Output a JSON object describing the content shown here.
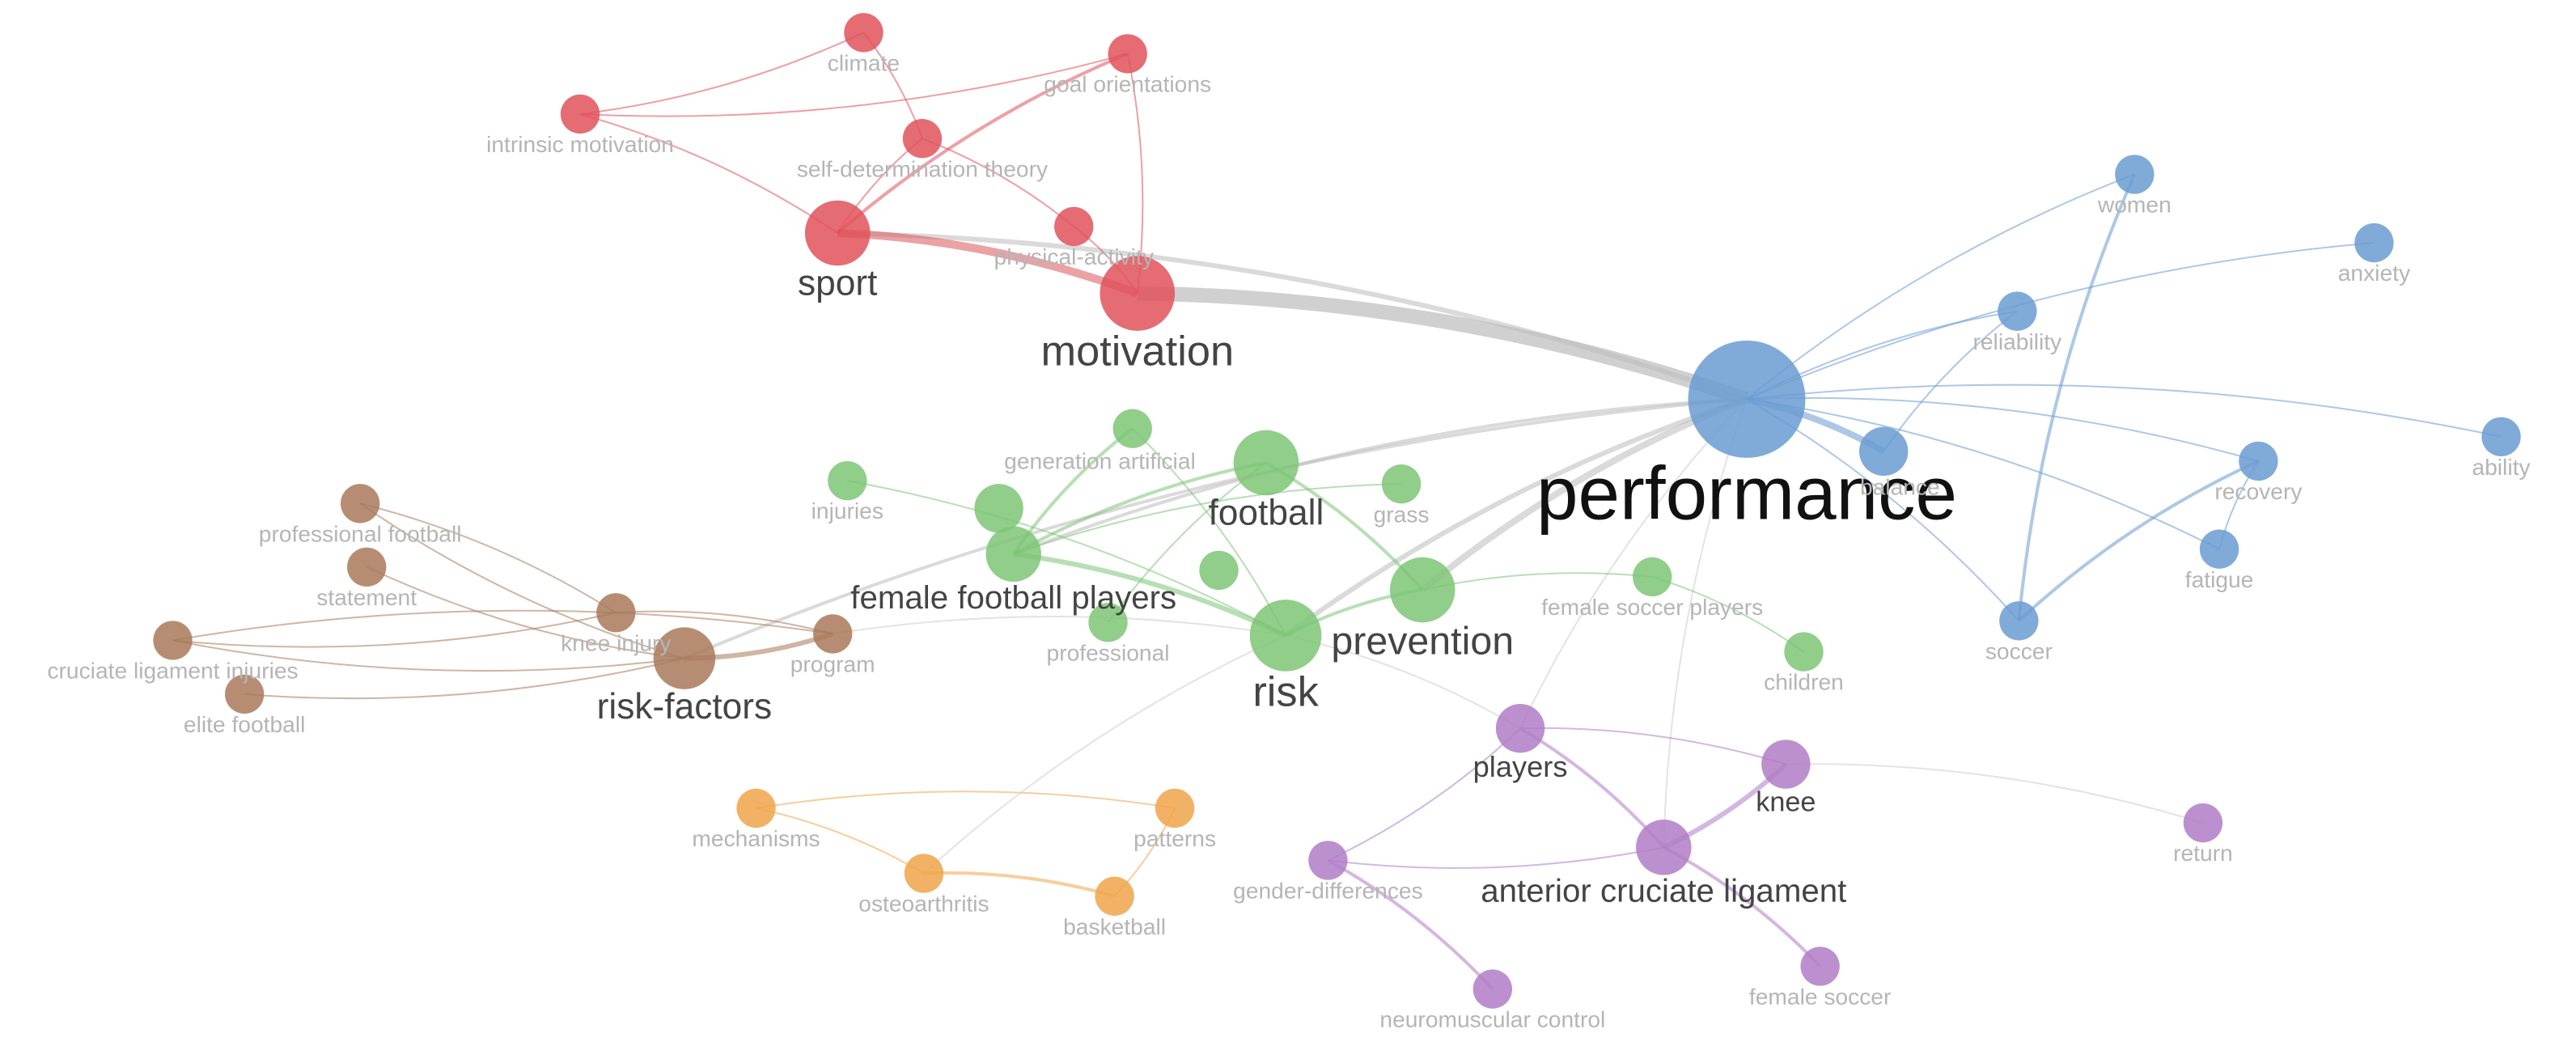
{
  "nodes": [
    {
      "label": "climate"
    },
    {
      "label": "goal orientations"
    },
    {
      "label": "intrinsic motivation"
    },
    {
      "label": "self-determination theory"
    },
    {
      "label": "physical-activity"
    },
    {
      "label": "sport"
    },
    {
      "label": "motivation"
    },
    {
      "label": "performance"
    },
    {
      "label": "women"
    },
    {
      "label": "anxiety"
    },
    {
      "label": "reliability"
    },
    {
      "label": "balance"
    },
    {
      "label": "recovery"
    },
    {
      "label": "ability"
    },
    {
      "label": "fatigue"
    },
    {
      "label": "soccer"
    },
    {
      "label": "generation artificial"
    },
    {
      "label": "football"
    },
    {
      "label": "grass"
    },
    {
      "label": "injuries"
    },
    {
      "label": "female football players"
    },
    {
      "label": "professional"
    },
    {
      "label": "risk"
    },
    {
      "label": "prevention"
    },
    {
      "label": "female soccer players"
    },
    {
      "label": "children"
    },
    {
      "label": "professional football"
    },
    {
      "label": "statement"
    },
    {
      "label": "cruciate ligament injuries"
    },
    {
      "label": "knee injury"
    },
    {
      "label": "risk-factors"
    },
    {
      "label": "program"
    },
    {
      "label": "elite football"
    },
    {
      "label": "mechanisms"
    },
    {
      "label": "patterns"
    },
    {
      "label": "osteoarthritis"
    },
    {
      "label": "basketball"
    },
    {
      "label": "players"
    },
    {
      "label": "knee"
    },
    {
      "label": "anterior cruciate ligament"
    },
    {
      "label": "gender-differences"
    },
    {
      "label": "neuromuscular control"
    },
    {
      "label": "female soccer"
    },
    {
      "label": "return"
    }
  ]
}
